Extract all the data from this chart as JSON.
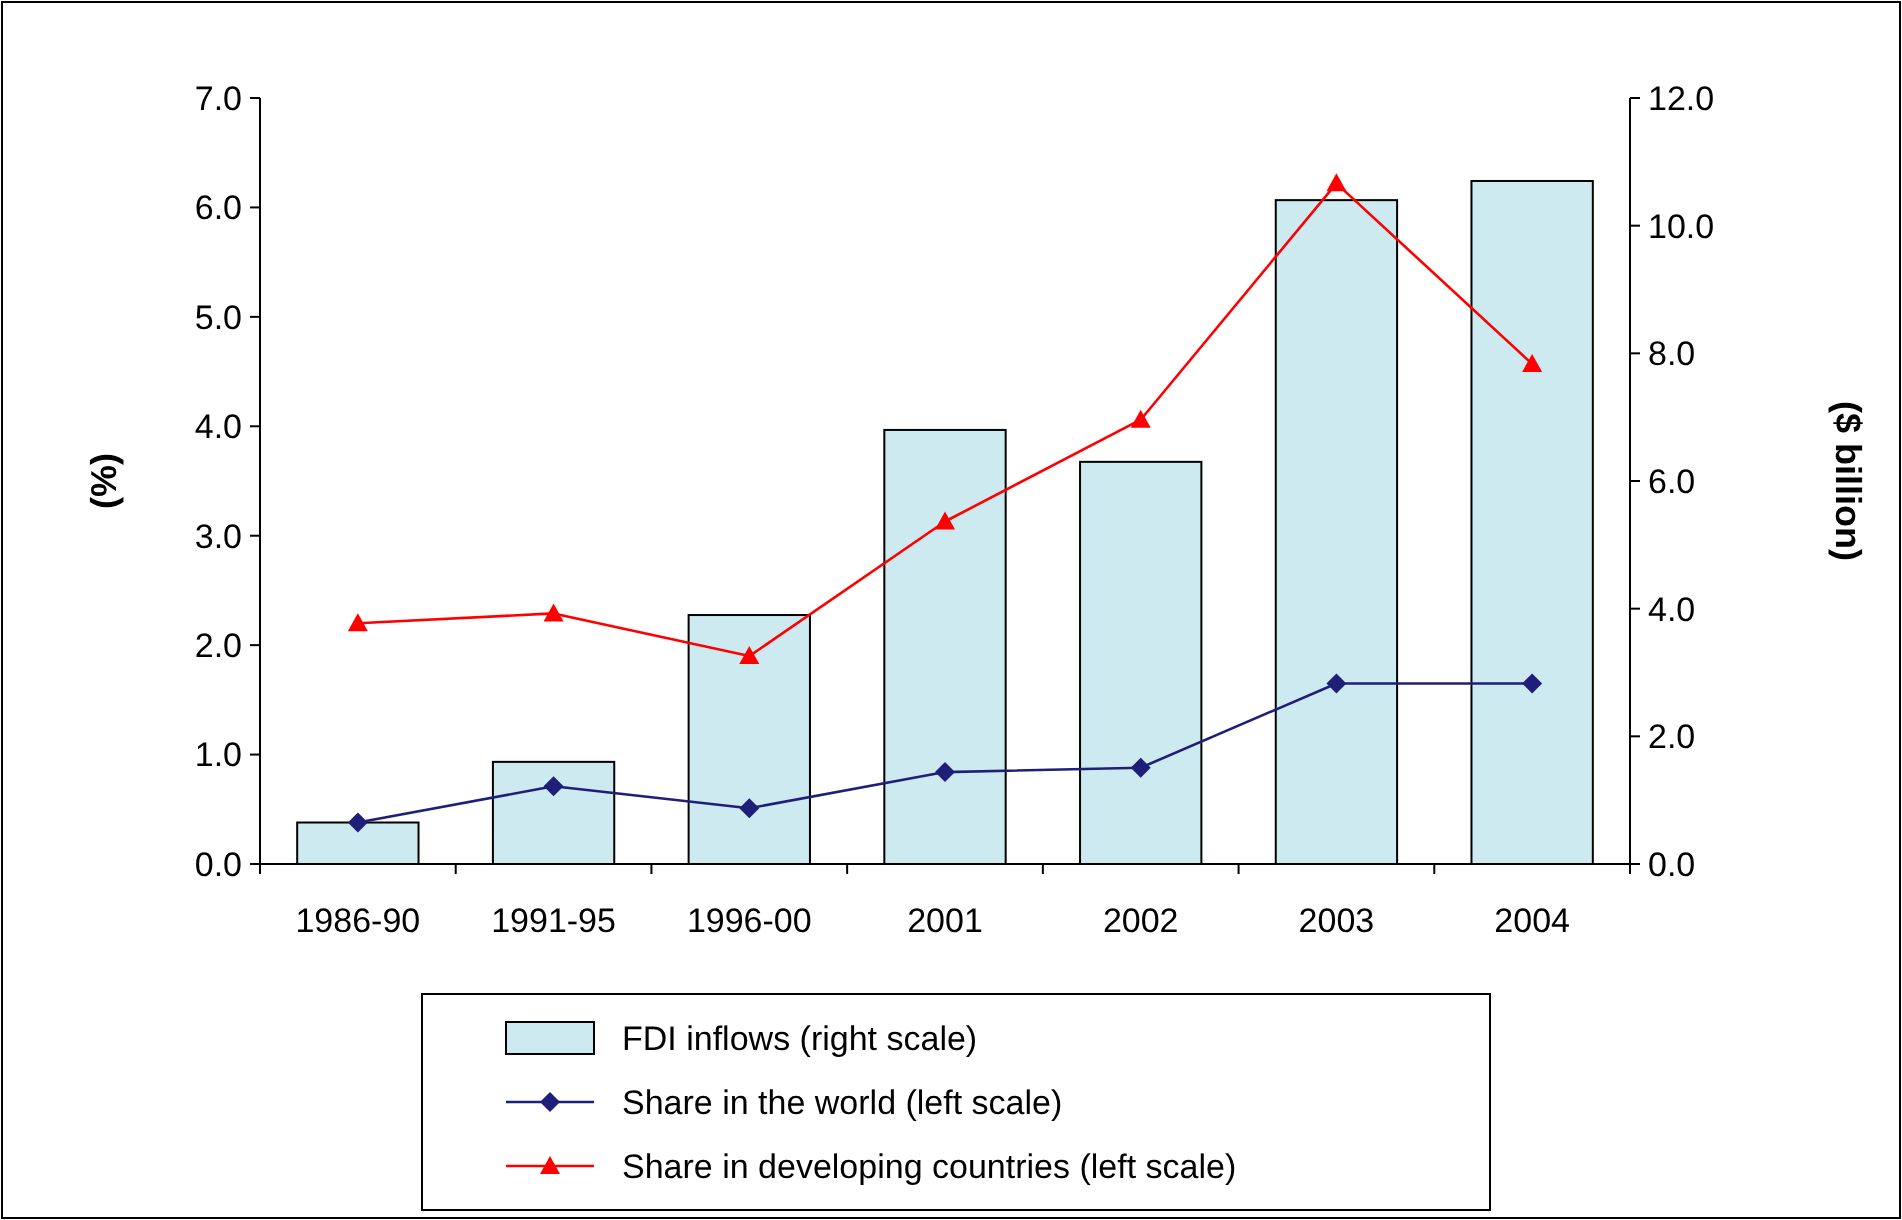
{
  "chart_data": {
    "type": "bar",
    "categories": [
      "1986-90",
      "1991-95",
      "1996-00",
      "2001",
      "2002",
      "2003",
      "2004"
    ],
    "ylabel": "(%)",
    "y2label": "($ billion)",
    "ylim": [
      0,
      7
    ],
    "yticks": [
      {
        "value": 0,
        "label": "0.0"
      },
      {
        "value": 1,
        "label": "1.0"
      },
      {
        "value": 2,
        "label": "2.0"
      },
      {
        "value": 3,
        "label": "3.0"
      },
      {
        "value": 4,
        "label": "4.0"
      },
      {
        "value": 5,
        "label": "5.0"
      },
      {
        "value": 6,
        "label": "6.0"
      },
      {
        "value": 7,
        "label": "7.0"
      }
    ],
    "y2lim": [
      0,
      12
    ],
    "y2ticks": [
      {
        "value": 0,
        "label": "0.0"
      },
      {
        "value": 2,
        "label": "2.0"
      },
      {
        "value": 4,
        "label": "4.0"
      },
      {
        "value": 6,
        "label": "6.0"
      },
      {
        "value": 8,
        "label": "8.0"
      },
      {
        "value": 10,
        "label": "10.0"
      },
      {
        "value": 12,
        "label": "12.0"
      }
    ],
    "legend": "bottom",
    "grid": false,
    "series": [
      {
        "name": "FDI inflows (right scale)",
        "type": "bar",
        "axis": "y2",
        "color": "#cdeaf0",
        "values": [
          0.65,
          1.6,
          3.9,
          6.8,
          6.3,
          10.4,
          10.7
        ]
      },
      {
        "name": "Share in the world (left scale)",
        "type": "line",
        "axis": "y",
        "color": "#1f1f7a",
        "marker": "diamond",
        "values": [
          0.38,
          0.71,
          0.51,
          0.84,
          0.88,
          1.65,
          1.65
        ]
      },
      {
        "name": "Share in developing countries (left scale)",
        "type": "line",
        "axis": "y",
        "color": "#ff0000",
        "marker": "triangle",
        "values": [
          2.2,
          2.29,
          1.9,
          3.13,
          4.06,
          6.22,
          4.57
        ]
      }
    ]
  }
}
